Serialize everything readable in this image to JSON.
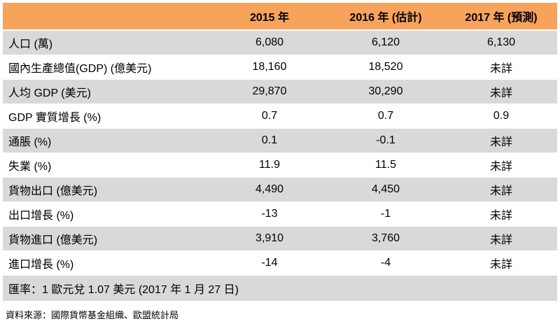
{
  "table": {
    "headers": [
      "",
      "2015 年",
      "2016 年 (估計)",
      "2017 年 (預測)"
    ],
    "rows": [
      {
        "label": "人口 (萬)",
        "v2015": "6,080",
        "v2016": "6,120",
        "v2017": "6,130"
      },
      {
        "label": "國內生產總值(GDP) (億美元)",
        "v2015": "18,160",
        "v2016": "18,520",
        "v2017": "未詳"
      },
      {
        "label": "人均 GDP (美元)",
        "v2015": "29,870",
        "v2016": "30,290",
        "v2017": "未詳"
      },
      {
        "label": "GDP 實質增長 (%)",
        "v2015": "0.7",
        "v2016": "0.7",
        "v2017": "0.9"
      },
      {
        "label": "通脹 (%)",
        "v2015": "0.1",
        "v2016": "-0.1",
        "v2017": "未詳"
      },
      {
        "label": "失業 (%)",
        "v2015": "11.9",
        "v2016": "11.5",
        "v2017": "未詳"
      },
      {
        "label": "貨物出口 (億美元)",
        "v2015": "4,490",
        "v2016": "4,450",
        "v2017": "未詳"
      },
      {
        "label": "出口增長 (%)",
        "v2015": "-13",
        "v2016": "-1",
        "v2017": "未詳"
      },
      {
        "label": "貨物進口 (億美元)",
        "v2015": "3,910",
        "v2016": "3,760",
        "v2017": "未詳"
      },
      {
        "label": "進口增長 (%)",
        "v2015": "-14",
        "v2016": "-4",
        "v2017": "未詳"
      }
    ],
    "footnote": "匯率：1 歐元兌 1.07 美元 (2017 年 1 月 27 日)"
  },
  "source": "資料來源：國際貨幣基金組織、歐盟統計局",
  "colors": {
    "header": "#f7a35c",
    "shade": "#d9d9d9"
  }
}
